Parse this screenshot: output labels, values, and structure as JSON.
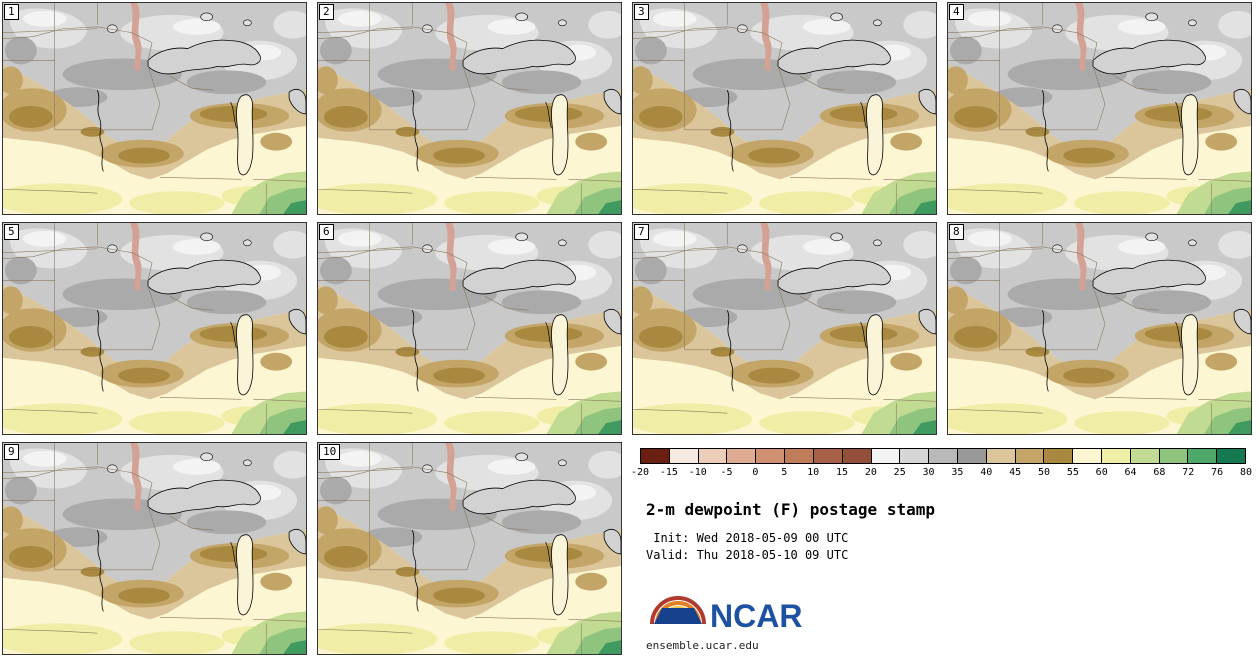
{
  "panels": [
    {
      "label": "1"
    },
    {
      "label": "2"
    },
    {
      "label": "3"
    },
    {
      "label": "4"
    },
    {
      "label": "5"
    },
    {
      "label": "6"
    },
    {
      "label": "7"
    },
    {
      "label": "8"
    },
    {
      "label": "9"
    },
    {
      "label": "10"
    }
  ],
  "legend": {
    "title": "2-m dewpoint (F) postage stamp",
    "init_line": " Init: Wed 2018-05-09 00 UTC",
    "valid_line": "Valid: Thu 2018-05-10 09 UTC",
    "logo_text": "NCAR",
    "site": "ensemble.ucar.edu"
  },
  "colorbar": {
    "ticks": [
      "-20",
      "-15",
      "-10",
      "-5",
      "0",
      "5",
      "10",
      "15",
      "20",
      "25",
      "30",
      "35",
      "40",
      "45",
      "50",
      "55",
      "60",
      "64",
      "68",
      "72",
      "76",
      "80"
    ],
    "colors": [
      "#6b1f10",
      "#f6e9e1",
      "#edccba",
      "#dfac92",
      "#cf8f70",
      "#c07b59",
      "#a96048",
      "#934f3a",
      "#f4f4f4",
      "#d6d6d6",
      "#b9b9b9",
      "#999999",
      "#dbc69c",
      "#c3a567",
      "#a8893f",
      "#fdf6d2",
      "#f0eda6",
      "#c2db92",
      "#8fc47f",
      "#4ea86a",
      "#157a52"
    ],
    "units": "F"
  },
  "map_colors": {
    "gray_low": "#c9c9c9",
    "tan_band": "#dbc69c",
    "dark_khaki": "#a8893f",
    "cream": "#fdf6d2",
    "green": "#8fc47f"
  }
}
